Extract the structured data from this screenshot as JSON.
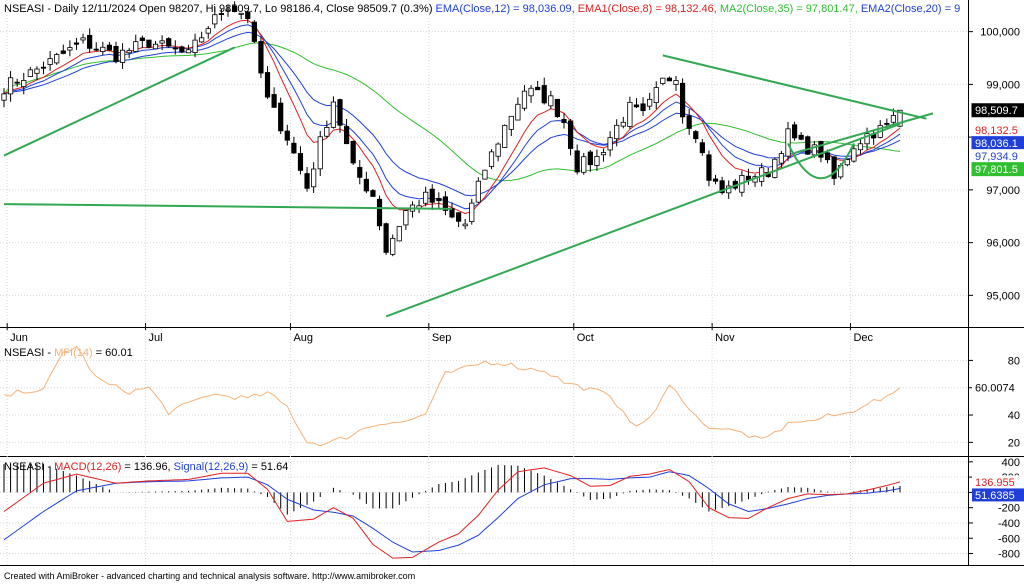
{
  "footer": "Created with AmiBroker - advanced charting and technical analysis software. http://www.amibroker.com",
  "colors": {
    "bg": "#ffffff",
    "grid": "#d8d8d8",
    "axis": "#000000",
    "ema12": "#1f3fd8",
    "ema8": "#e02020",
    "ma35": "#2fbf2f",
    "ema20": "#1f3fd8",
    "trendline": "#33a853",
    "mfi": "#f4b27a",
    "macd": "#e02020",
    "signal": "#1f3fd8",
    "candle_up": "#ffffff",
    "candle_down": "#000000"
  },
  "chart_data": [
    {
      "type": "candlestick",
      "name": "price",
      "header": {
        "symbol": "NSEASI",
        "text": " - Daily 12/11/2024 Open 98207, Hi 98509.7, Lo 98186.4, Close 98509.7 (0.3%) ",
        "ind1": "EMA(Close,12) = 98,036.09,",
        "ind2": "EMA1(Close,8) = 98,132.46,",
        "ind3": "MA2(Close,35) = 97,801.47,",
        "ind4": "EMA2(Close,20) = 9"
      },
      "ylim": [
        94400,
        100600
      ],
      "yticks": [
        95000,
        96000,
        97000,
        98000,
        99000,
        100000
      ],
      "ytick_labels": [
        "95,000",
        "96,000",
        "97,000",
        "98,000",
        "99,000",
        "100,000"
      ],
      "x_month_labels": [
        "Jun",
        "Jul",
        "Aug",
        "Sep",
        "Oct",
        "Nov",
        "Dec"
      ],
      "x_month_index": [
        2,
        23,
        45,
        66,
        88,
        109,
        130
      ],
      "num_bars": 137,
      "anchors": [
        [
          0,
          98950
        ],
        [
          6,
          99350
        ],
        [
          12,
          99800
        ],
        [
          17,
          99550
        ],
        [
          22,
          99800
        ],
        [
          28,
          99550
        ],
        [
          31,
          100100
        ],
        [
          34,
          100500
        ],
        [
          37,
          100300
        ],
        [
          38,
          99700
        ],
        [
          40,
          98700
        ],
        [
          43,
          98000
        ],
        [
          46,
          97050
        ],
        [
          48,
          97900
        ],
        [
          50,
          98700
        ],
        [
          53,
          97400
        ],
        [
          56,
          96900
        ],
        [
          58,
          95850
        ],
        [
          61,
          96600
        ],
        [
          64,
          96850
        ],
        [
          66,
          96700
        ],
        [
          68,
          96450
        ],
        [
          70,
          96350
        ],
        [
          73,
          97400
        ],
        [
          76,
          98200
        ],
        [
          79,
          98900
        ],
        [
          83,
          98700
        ],
        [
          85,
          98300
        ],
        [
          87,
          97450
        ],
        [
          90,
          97600
        ],
        [
          93,
          98200
        ],
        [
          95,
          98550
        ],
        [
          97,
          98400
        ],
        [
          100,
          99050
        ],
        [
          102,
          99200
        ],
        [
          103,
          98450
        ],
        [
          105,
          98100
        ],
        [
          107,
          97250
        ],
        [
          109,
          96950
        ],
        [
          111,
          97100
        ],
        [
          113,
          97250
        ],
        [
          116,
          97350
        ],
        [
          119,
          98050
        ],
        [
          121,
          97850
        ],
        [
          124,
          97700
        ],
        [
          126,
          97200
        ],
        [
          129,
          97850
        ],
        [
          131,
          98050
        ],
        [
          134,
          98200
        ],
        [
          136,
          98509.7
        ]
      ],
      "last_open": 98207,
      "last_high": 98509.7,
      "last_low": 98186.4,
      "last_close": 98509.7,
      "ema12_last": 98036.09,
      "ema8_last": 98132.46,
      "ma35_last": 97801.47,
      "ema20_last": 97934.9,
      "value_badges": [
        {
          "label": "98,509.7",
          "value": 98509.7,
          "fg": "#ffffff",
          "bg": "#000000"
        },
        {
          "label": "98,132.5",
          "value": 98132.46,
          "fg": "#e02020",
          "bg": "#ffffff"
        },
        {
          "label": "98,036.1",
          "value": 98036.09,
          "fg": "#ffffff",
          "bg": "#1f3fd8"
        },
        {
          "label": "97,934.9",
          "value": 97934.9,
          "fg": "#1f3fd8",
          "bg": "#ffffff"
        },
        {
          "label": "97,801.5",
          "value": 97801.47,
          "fg": "#ffffff",
          "bg": "#2fbf2f"
        }
      ],
      "trendlines": [
        {
          "from": [
            0,
            97650
          ],
          "to": [
            35,
            99700
          ]
        },
        {
          "from": [
            0,
            96730
          ],
          "to": [
            68,
            96640
          ]
        },
        {
          "from": [
            58,
            94600
          ],
          "to": [
            136,
            98250
          ]
        },
        {
          "from": [
            100,
            99550
          ],
          "to": [
            140,
            98350
          ]
        },
        {
          "from": [
            120,
            97700
          ],
          "to": [
            141,
            98450
          ]
        }
      ],
      "cup": {
        "from_index": 119,
        "to_index": 129,
        "top": 97880,
        "bottom": 97220
      }
    },
    {
      "type": "line",
      "name": "mfi",
      "header": {
        "symbol": "NSEASI",
        "indicator": "MFI(14)",
        "value": " = 60.01"
      },
      "ylim": [
        10,
        92
      ],
      "yticks": [
        20,
        40,
        60,
        80
      ],
      "ytick_labels": [
        "20",
        "40",
        "60",
        "80"
      ],
      "badge": {
        "label": "60.0074",
        "value": 60.0074
      },
      "anchors": [
        [
          0,
          53
        ],
        [
          3,
          58
        ],
        [
          6,
          58
        ],
        [
          9,
          86
        ],
        [
          11,
          90
        ],
        [
          14,
          67
        ],
        [
          16,
          62
        ],
        [
          19,
          57
        ],
        [
          22,
          60
        ],
        [
          25,
          42
        ],
        [
          28,
          48
        ],
        [
          31,
          55
        ],
        [
          34,
          54
        ],
        [
          37,
          52
        ],
        [
          40,
          56
        ],
        [
          43,
          46
        ],
        [
          46,
          20
        ],
        [
          49,
          19
        ],
        [
          52,
          24
        ],
        [
          55,
          31
        ],
        [
          58,
          35
        ],
        [
          61,
          35
        ],
        [
          64,
          41
        ],
        [
          67,
          70
        ],
        [
          70,
          74
        ],
        [
          73,
          79
        ],
        [
          76,
          78
        ],
        [
          79,
          74
        ],
        [
          82,
          73
        ],
        [
          85,
          64
        ],
        [
          88,
          60
        ],
        [
          91,
          56
        ],
        [
          94,
          44
        ],
        [
          96,
          30
        ],
        [
          99,
          44
        ],
        [
          101,
          61
        ],
        [
          103,
          52
        ],
        [
          106,
          33
        ],
        [
          109,
          30
        ],
        [
          112,
          27
        ],
        [
          115,
          21
        ],
        [
          117,
          27
        ],
        [
          120,
          36
        ],
        [
          122,
          35
        ],
        [
          125,
          39
        ],
        [
          128,
          41
        ],
        [
          131,
          49
        ],
        [
          134,
          52
        ],
        [
          136,
          60.01
        ]
      ]
    },
    {
      "type": "line",
      "name": "macd",
      "header": {
        "symbol": "NSEASI",
        "indicator": "MACD(12,26)",
        "value1": " = 136.96, ",
        "signal": "Signal(12,26,9)",
        "value2": " = 51.64"
      },
      "ylim": [
        -950,
        450
      ],
      "yticks": [
        -800,
        -600,
        -400,
        -200,
        0,
        200,
        400
      ],
      "ytick_labels": [
        "-800",
        "-600",
        "-400",
        "-200",
        "0",
        "200",
        "400"
      ],
      "badges": [
        {
          "label": "136.955",
          "value": 136.96,
          "fg": "#e02020",
          "bg": "#ffffff"
        },
        {
          "label": "51.6385",
          "value": 51.6385,
          "fg": "#ffffff",
          "bg": "#1f3fd8"
        }
      ],
      "macd_anchors": [
        [
          0,
          -250
        ],
        [
          6,
          120
        ],
        [
          11,
          240
        ],
        [
          17,
          120
        ],
        [
          22,
          150
        ],
        [
          28,
          170
        ],
        [
          33,
          250
        ],
        [
          37,
          250
        ],
        [
          40,
          40
        ],
        [
          43,
          -380
        ],
        [
          47,
          -350
        ],
        [
          50,
          -200
        ],
        [
          53,
          -340
        ],
        [
          56,
          -680
        ],
        [
          59,
          -860
        ],
        [
          62,
          -850
        ],
        [
          66,
          -650
        ],
        [
          69,
          -540
        ],
        [
          72,
          -300
        ],
        [
          75,
          30
        ],
        [
          78,
          270
        ],
        [
          82,
          320
        ],
        [
          86,
          220
        ],
        [
          89,
          80
        ],
        [
          92,
          90
        ],
        [
          95,
          210
        ],
        [
          98,
          240
        ],
        [
          101,
          300
        ],
        [
          104,
          140
        ],
        [
          107,
          -200
        ],
        [
          110,
          -330
        ],
        [
          113,
          -340
        ],
        [
          116,
          -200
        ],
        [
          119,
          -80
        ],
        [
          122,
          -20
        ],
        [
          125,
          -30
        ],
        [
          128,
          -20
        ],
        [
          131,
          30
        ],
        [
          134,
          90
        ],
        [
          136,
          136.96
        ]
      ],
      "signal_anchors": [
        [
          0,
          -620
        ],
        [
          6,
          -250
        ],
        [
          11,
          20
        ],
        [
          17,
          120
        ],
        [
          22,
          140
        ],
        [
          28,
          150
        ],
        [
          33,
          190
        ],
        [
          37,
          200
        ],
        [
          40,
          100
        ],
        [
          43,
          -90
        ],
        [
          47,
          -230
        ],
        [
          50,
          -260
        ],
        [
          53,
          -310
        ],
        [
          56,
          -470
        ],
        [
          59,
          -650
        ],
        [
          62,
          -780
        ],
        [
          66,
          -760
        ],
        [
          69,
          -690
        ],
        [
          72,
          -560
        ],
        [
          75,
          -330
        ],
        [
          78,
          -80
        ],
        [
          82,
          100
        ],
        [
          86,
          180
        ],
        [
          89,
          180
        ],
        [
          92,
          170
        ],
        [
          95,
          190
        ],
        [
          98,
          200
        ],
        [
          101,
          270
        ],
        [
          104,
          220
        ],
        [
          107,
          50
        ],
        [
          110,
          -150
        ],
        [
          113,
          -250
        ],
        [
          116,
          -210
        ],
        [
          119,
          -150
        ],
        [
          122,
          -80
        ],
        [
          125,
          -40
        ],
        [
          128,
          -20
        ],
        [
          131,
          -10
        ],
        [
          134,
          20
        ],
        [
          136,
          51.64
        ]
      ]
    }
  ]
}
